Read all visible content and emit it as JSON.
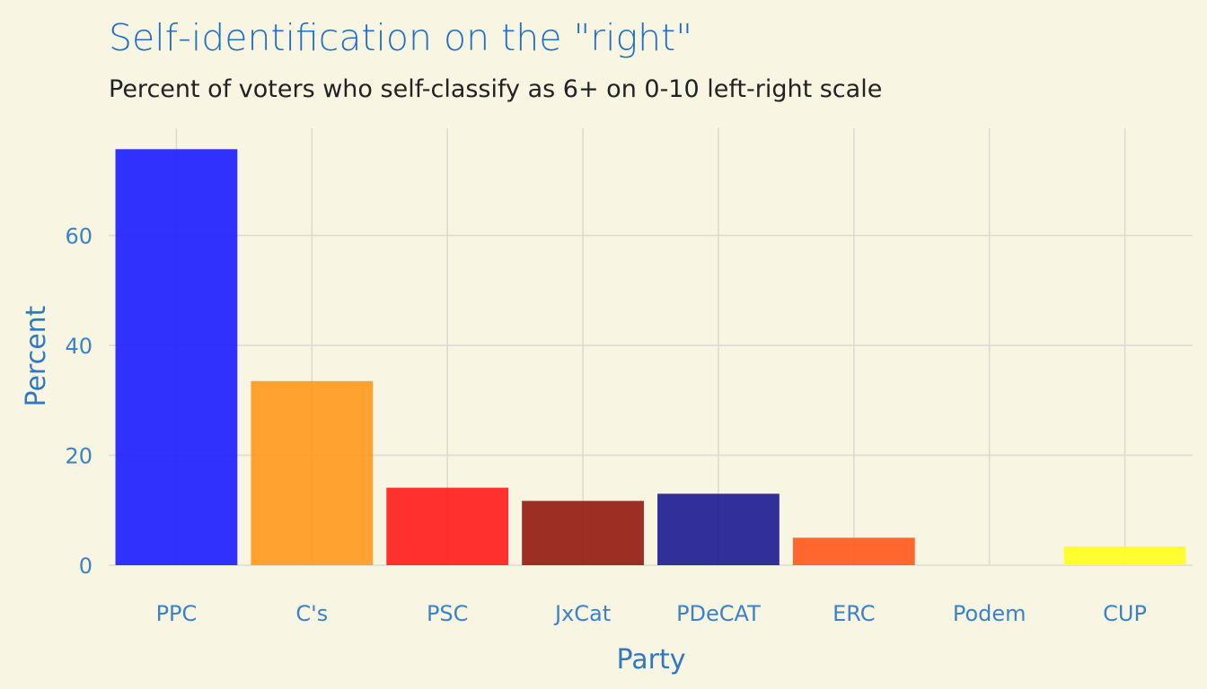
{
  "title": "Self-identification on the \"right\"",
  "subtitle": "Percent of voters who self-classify as 6+ on 0-10 left-right scale",
  "chart_data": {
    "type": "bar",
    "categories": [
      "PPC",
      "C's",
      "PSC",
      "JxCat",
      "PDeCAT",
      "ERC",
      "Podem",
      "CUP"
    ],
    "values": [
      75.7,
      33.5,
      14.1,
      11.7,
      13.0,
      5.0,
      0.0,
      3.4
    ],
    "colors": [
      "#1f1fff",
      "#ff9a1f",
      "#ff2020",
      "#951c14",
      "#1f1d94",
      "#ff5a1f",
      "#9a6e9e",
      "#ffff1f"
    ],
    "xlabel": "Party",
    "ylabel": "Percent",
    "ylim": [
      0,
      79.5
    ],
    "yticks": [
      0,
      20,
      40,
      60
    ],
    "grid": true,
    "legend": "none"
  }
}
